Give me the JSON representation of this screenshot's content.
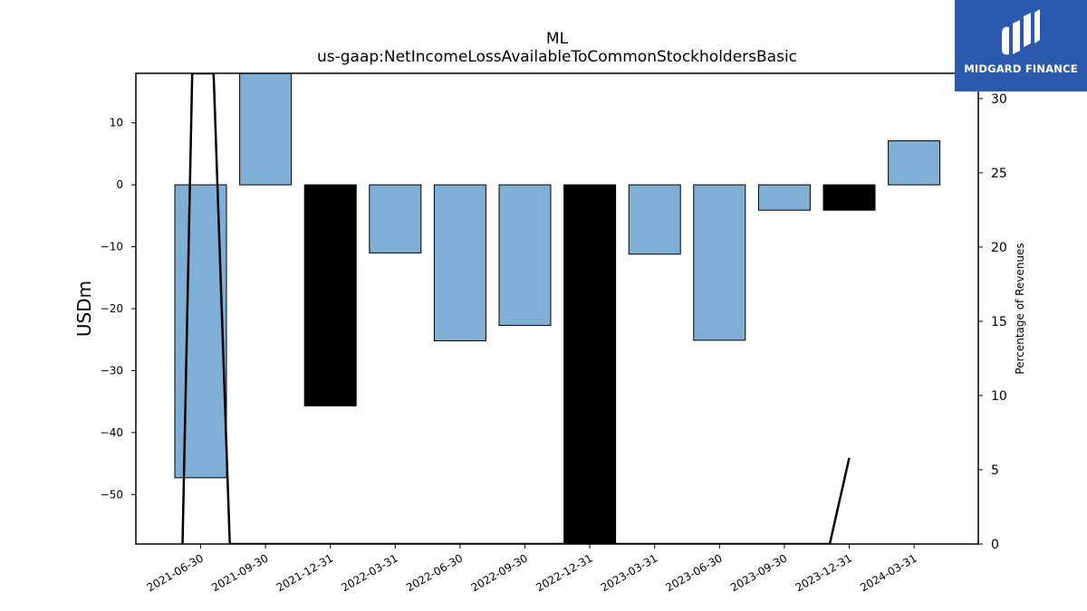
{
  "chart_data": {
    "type": "bar",
    "title_line1": "ML",
    "title_line2": "us-gaap:NetIncomeLossAvailableToCommonStockholdersBasic",
    "ylabel": "USDm",
    "ylabel_right": "Percentage of Revenues",
    "categories": [
      "2021-06-30",
      "2021-09-30",
      "2021-12-31",
      "2022-03-31",
      "2022-06-30",
      "2022-09-30",
      "2022-12-31",
      "2023-03-31",
      "2023-06-30",
      "2023-09-30",
      "2023-12-31",
      "2024-03-31"
    ],
    "values": [
      -47.3,
      18.0,
      -35.7,
      -11.0,
      -25.2,
      -22.7,
      -58.0,
      -11.2,
      -25.1,
      -4.1,
      -4.1,
      7.1
    ],
    "bar_colors": [
      "#7fafd4",
      "#7fafd4",
      "#000000",
      "#7fafd4",
      "#7fafd4",
      "#7fafd4",
      "#000000",
      "#7fafd4",
      "#7fafd4",
      "#7fafd4",
      "#000000",
      "#7fafd4"
    ],
    "ylim": [
      -58,
      18
    ],
    "yticks": [
      -50,
      -40,
      -30,
      -20,
      -10,
      0,
      10
    ],
    "ytick_labels": [
      "−50",
      "−40",
      "−30",
      "−20",
      "−10",
      "0",
      "10"
    ],
    "y2lim": [
      0,
      31.7
    ],
    "y2ticks": [
      0,
      5,
      10,
      15,
      20,
      25,
      30
    ],
    "y2tick_labels": [
      "0",
      "5",
      "10",
      "15",
      "20",
      "25",
      "30"
    ],
    "pct_line": [
      {
        "x": -0.28,
        "y": 0
      },
      {
        "x": -0.13,
        "y": 31.7
      },
      {
        "x": 0.2,
        "y": 31.7
      },
      {
        "x": 0.45,
        "y": 0
      },
      {
        "x": 9.7,
        "y": 0
      },
      {
        "x": 10.0,
        "y": 5.8
      }
    ],
    "grid": false,
    "bar_color": "#7fafd4",
    "line_color": "#000000"
  },
  "logo": {
    "text": "MIDGARD FINANCE",
    "bg_color": "#2b5aad"
  }
}
